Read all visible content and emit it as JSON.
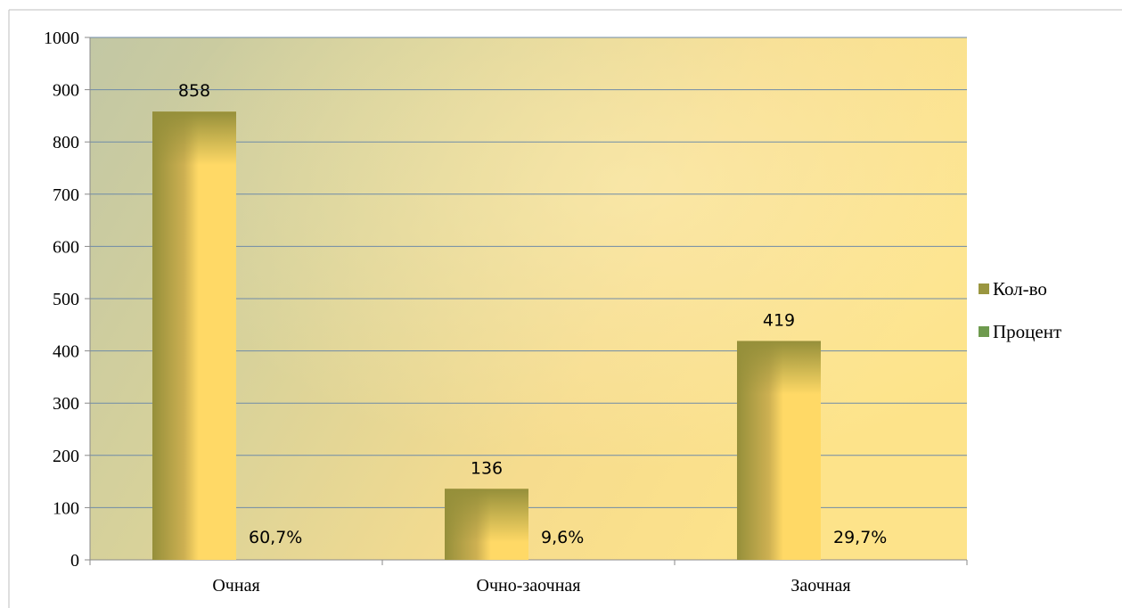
{
  "chart_data": {
    "type": "bar",
    "title": "",
    "xlabel": "",
    "ylabel": "",
    "ylim": [
      0,
      1000
    ],
    "yticks": [
      0,
      100,
      200,
      300,
      400,
      500,
      600,
      700,
      800,
      900,
      1000
    ],
    "grid": true,
    "legend_position": "right",
    "categories": [
      "Очная",
      "Очно-заочная",
      "Заочная"
    ],
    "series": [
      {
        "name": "Кол-во",
        "values": [
          858,
          136,
          419
        ],
        "labels": [
          "858",
          "136",
          "419"
        ],
        "color": "#9a9640"
      },
      {
        "name": "Процент",
        "values": [
          60.7,
          9.6,
          29.7
        ],
        "labels": [
          "60,7%",
          "9,6%",
          "29,7%"
        ],
        "color": "#6e9a4e"
      }
    ],
    "colors": {
      "bar_dark": "#958f3a",
      "bar_light": "#ffd966",
      "grid": "#6f8ba8",
      "plot_bg_left": "#c3c8a5",
      "plot_bg_right": "#fddc7f"
    }
  }
}
